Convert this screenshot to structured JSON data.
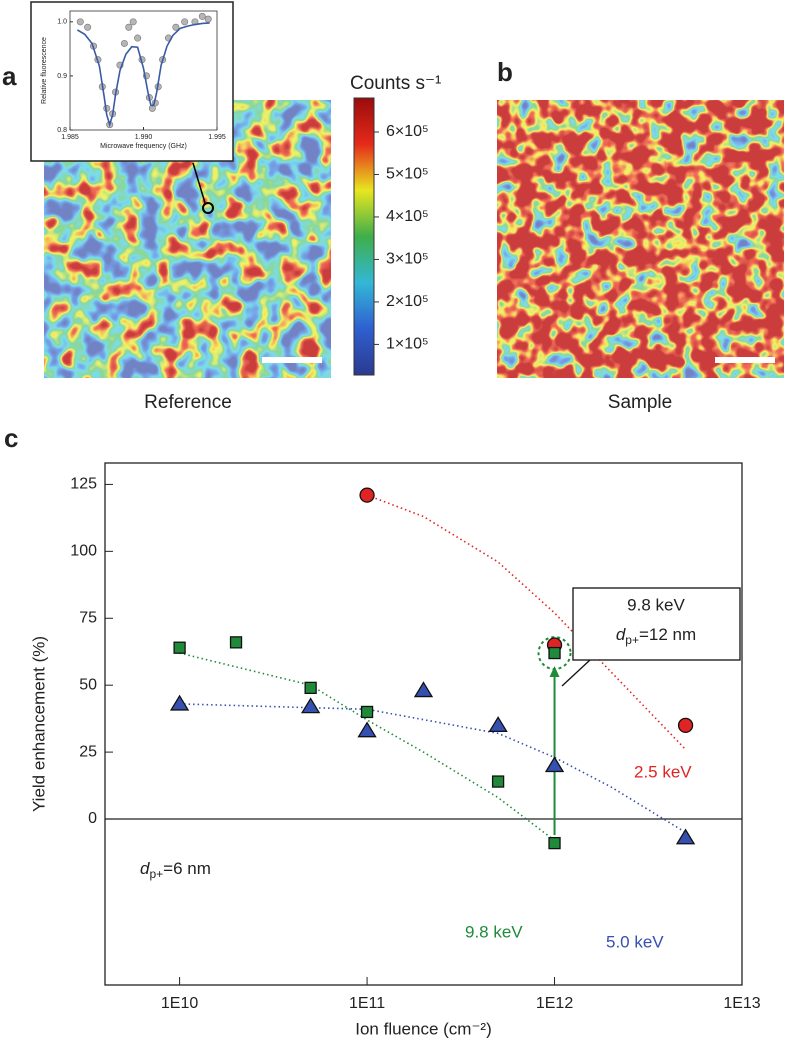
{
  "panels": {
    "a": "a",
    "b": "b",
    "c": "c"
  },
  "captions": {
    "reference": "Reference",
    "sample": "Sample"
  },
  "chart_data": [
    {
      "type": "line",
      "xlabel": "Microwave frequency (GHz)",
      "ylabel": "Relative fluorescence",
      "xlim": [
        1.985,
        1.995
      ],
      "xticks": [
        1.985,
        {
          "value": 1.99,
          "label": "1.990"
        },
        1.995
      ],
      "ylim": [
        0.8,
        1.02
      ],
      "yticks": [
        0.8,
        0.9,
        {
          "value": 1,
          "label": "1.0"
        }
      ],
      "series": [
        {
          "type": "scatter",
          "color": "#b5b5b5",
          "x": [
            1.9857,
            1.9862,
            1.9866,
            1.9869,
            1.9872,
            1.9875,
            1.9877,
            1.9879,
            1.9881,
            1.9884,
            1.9887,
            1.989,
            1.9893,
            1.9896,
            1.9899,
            1.9902,
            1.9904,
            1.9906,
            1.9908,
            1.991,
            1.9913,
            1.9917,
            1.9922,
            1.9928,
            1.9935,
            1.994,
            1.9944
          ],
          "values": [
            1.0,
            0.99,
            0.955,
            0.93,
            0.88,
            0.84,
            0.81,
            0.83,
            0.87,
            0.92,
            0.96,
            0.99,
            1.0,
            0.97,
            0.93,
            0.9,
            0.86,
            0.84,
            0.85,
            0.88,
            0.93,
            0.97,
            0.99,
            1.0,
            1.0,
            1.01,
            1.005
          ]
        },
        {
          "type": "line",
          "color": "#3a5aa5",
          "x": [
            1.9855,
            1.986,
            1.9865,
            1.987,
            1.9873,
            1.9875,
            1.9877,
            1.9879,
            1.9881,
            1.9884,
            1.9888,
            1.9892,
            1.9896,
            1.99,
            1.9903,
            1.9905,
            1.9906,
            1.9907,
            1.9909,
            1.9912,
            1.9916,
            1.992,
            1.9925,
            1.993,
            1.9935,
            1.994,
            1.9945
          ],
          "values": [
            0.985,
            0.977,
            0.96,
            0.918,
            0.866,
            0.828,
            0.81,
            0.828,
            0.866,
            0.91,
            0.94,
            0.954,
            0.953,
            0.914,
            0.87,
            0.846,
            0.845,
            0.846,
            0.87,
            0.92,
            0.955,
            0.975,
            0.988,
            0.992,
            0.995,
            0.997,
            0.998
          ]
        }
      ]
    },
    {
      "type": "colorbar",
      "title": "Counts s⁻¹",
      "ylim": [
        28000,
        680000
      ],
      "yticks": [
        {
          "value": 100000,
          "label": "1×10⁵"
        },
        {
          "value": 200000,
          "label": "2×10⁵"
        },
        {
          "value": 300000,
          "label": "3×10⁵"
        },
        {
          "value": 400000,
          "label": "4×10⁵"
        },
        {
          "value": 500000,
          "label": "5×10⁵"
        },
        {
          "value": 600000,
          "label": "6×10⁵"
        }
      ],
      "colors": [
        "#2b3a8f",
        "#2f5fd0",
        "#33b7d6",
        "#3fae4a",
        "#e8e620",
        "#e52a1a",
        "#9a0c0c"
      ]
    },
    {
      "type": "scatter",
      "xlabel": "Ion fluence (cm⁻²)",
      "ylabel": "Yield enhancement (%)",
      "xscale": "log",
      "xlim": [
        4000000000,
        10000000000000
      ],
      "xticks": [
        {
          "value": 10000000000,
          "label": "1E10"
        },
        {
          "value": 100000000000,
          "label": "1E11"
        },
        {
          "value": 1000000000000,
          "label": "1E12"
        },
        {
          "value": 10000000000000,
          "label": "1E13"
        }
      ],
      "ylim": [
        -62,
        133
      ],
      "yticks": [
        0,
        25,
        50,
        75,
        100,
        125
      ],
      "zero_line": true,
      "annotations": {
        "box_energy": "9.8 keV",
        "box_d": "d",
        "box_sub": "p+",
        "box_rest": "=12 nm",
        "d": "d",
        "sub": "p+",
        "rest": "=6 nm"
      },
      "series": [
        {
          "name": "2.5 keV",
          "color": "#e02424",
          "marker": "circle",
          "x": [
            100000000000,
            1000000000000,
            5000000000000
          ],
          "values": [
            121,
            65,
            35
          ],
          "fit_x": [
            100000000000,
            200000000000,
            500000000000,
            1000000000000,
            2000000000000,
            5000000000000
          ],
          "fit_values": [
            121,
            113,
            96,
            77,
            55,
            26
          ]
        },
        {
          "name": "5.0 keV",
          "color": "#3550b0",
          "marker": "triangle",
          "x": [
            10000000000,
            50000000000,
            100000000000,
            200000000000,
            500000000000,
            1000000000000,
            5000000000000
          ],
          "values": [
            43,
            42,
            33,
            48,
            35,
            20,
            -7
          ],
          "fit_x": [
            10000000000,
            100000000000,
            500000000000,
            1000000000000,
            2000000000000,
            5000000000000
          ],
          "fit_values": [
            43,
            41,
            32,
            23,
            12,
            -5
          ]
        },
        {
          "name": "9.8 keV",
          "color": "#1f8a3a",
          "marker": "square",
          "x": [
            10000000000,
            20000000000,
            50000000000,
            100000000000,
            500000000000,
            1000000000000,
            1000000000000
          ],
          "values": [
            64,
            66,
            49,
            40,
            14,
            -9,
            62
          ],
          "fit_x": [
            10000000000,
            50000000000,
            100000000000,
            200000000000,
            500000000000,
            1000000000000
          ],
          "fit_values": [
            62,
            50,
            37,
            25,
            8,
            -8
          ]
        }
      ]
    }
  ]
}
